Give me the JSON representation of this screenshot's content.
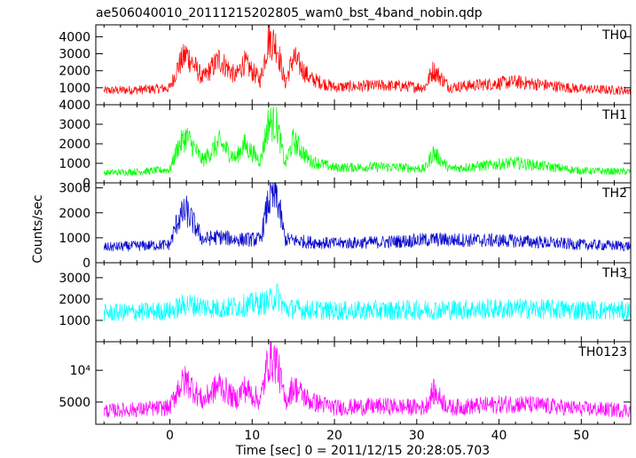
{
  "chart_data": {
    "type": "line",
    "title": "ae506040010_20111215202805_wam0_bst_4band_nobin.qdp",
    "xlabel": "Time [sec] 0 = 2011/12/15 20:28:05.703",
    "ylabel": "Counts/sec",
    "xlim": [
      -9,
      56
    ],
    "x_ticks": [
      "0",
      "10",
      "20",
      "30",
      "40",
      "50"
    ],
    "x_tick_values": [
      0,
      10,
      20,
      30,
      40,
      50
    ],
    "panels": [
      {
        "name": "TH0",
        "color": "#ff0000",
        "ylim": [
          0,
          4700
        ],
        "y_ticks": [
          "1000",
          "2000",
          "3000",
          "4000"
        ],
        "y_tick_values": [
          1000,
          2000,
          3000,
          4000
        ],
        "envelope": [
          {
            "x": -8,
            "y": 800
          },
          {
            "x": -4,
            "y": 850
          },
          {
            "x": 0,
            "y": 950
          },
          {
            "x": 1,
            "y": 2200
          },
          {
            "x": 2,
            "y": 2900
          },
          {
            "x": 4,
            "y": 1500
          },
          {
            "x": 6,
            "y": 2600
          },
          {
            "x": 8,
            "y": 1600
          },
          {
            "x": 9,
            "y": 2400
          },
          {
            "x": 11,
            "y": 1400
          },
          {
            "x": 12,
            "y": 3800
          },
          {
            "x": 13,
            "y": 3400
          },
          {
            "x": 14,
            "y": 1200
          },
          {
            "x": 15,
            "y": 2700
          },
          {
            "x": 17,
            "y": 1500
          },
          {
            "x": 20,
            "y": 1000
          },
          {
            "x": 26,
            "y": 1100
          },
          {
            "x": 31,
            "y": 1000
          },
          {
            "x": 32,
            "y": 2000
          },
          {
            "x": 34,
            "y": 1000
          },
          {
            "x": 42,
            "y": 1300
          },
          {
            "x": 50,
            "y": 900
          },
          {
            "x": 56,
            "y": 800
          }
        ]
      },
      {
        "name": "TH1",
        "color": "#00ff00",
        "ylim": [
          0,
          4000
        ],
        "y_ticks": [
          "0",
          "1000",
          "2000",
          "3000",
          "4000"
        ],
        "y_tick_values": [
          0,
          1000,
          2000,
          3000,
          4000
        ],
        "envelope": [
          {
            "x": -8,
            "y": 500
          },
          {
            "x": -4,
            "y": 550
          },
          {
            "x": 0,
            "y": 650
          },
          {
            "x": 1,
            "y": 1800
          },
          {
            "x": 2,
            "y": 2300
          },
          {
            "x": 4,
            "y": 1100
          },
          {
            "x": 6,
            "y": 2000
          },
          {
            "x": 8,
            "y": 1200
          },
          {
            "x": 9,
            "y": 1900
          },
          {
            "x": 11,
            "y": 1100
          },
          {
            "x": 12,
            "y": 3000
          },
          {
            "x": 13,
            "y": 2900
          },
          {
            "x": 14,
            "y": 900
          },
          {
            "x": 15,
            "y": 2100
          },
          {
            "x": 17,
            "y": 1100
          },
          {
            "x": 20,
            "y": 750
          },
          {
            "x": 26,
            "y": 800
          },
          {
            "x": 31,
            "y": 700
          },
          {
            "x": 32,
            "y": 1500
          },
          {
            "x": 34,
            "y": 700
          },
          {
            "x": 42,
            "y": 1000
          },
          {
            "x": 50,
            "y": 600
          },
          {
            "x": 56,
            "y": 550
          }
        ]
      },
      {
        "name": "TH2",
        "color": "#0000cc",
        "ylim": [
          0,
          3200
        ],
        "y_ticks": [
          "0",
          "1000",
          "2000",
          "3000"
        ],
        "y_tick_values": [
          0,
          1000,
          2000,
          3000
        ],
        "envelope": [
          {
            "x": -8,
            "y": 600
          },
          {
            "x": -4,
            "y": 650
          },
          {
            "x": 0,
            "y": 700
          },
          {
            "x": 1,
            "y": 1700
          },
          {
            "x": 2,
            "y": 2000
          },
          {
            "x": 4,
            "y": 900
          },
          {
            "x": 6,
            "y": 1000
          },
          {
            "x": 8,
            "y": 900
          },
          {
            "x": 11,
            "y": 900
          },
          {
            "x": 12,
            "y": 2400
          },
          {
            "x": 13,
            "y": 2600
          },
          {
            "x": 14,
            "y": 900
          },
          {
            "x": 17,
            "y": 800
          },
          {
            "x": 20,
            "y": 750
          },
          {
            "x": 26,
            "y": 800
          },
          {
            "x": 32,
            "y": 900
          },
          {
            "x": 42,
            "y": 850
          },
          {
            "x": 50,
            "y": 700
          },
          {
            "x": 56,
            "y": 650
          }
        ]
      },
      {
        "name": "TH3",
        "color": "#00ffff",
        "ylim": [
          0,
          3700
        ],
        "y_ticks": [
          "1000",
          "2000",
          "3000"
        ],
        "y_tick_values": [
          1000,
          2000,
          3000
        ],
        "envelope": [
          {
            "x": -8,
            "y": 1300
          },
          {
            "x": 0,
            "y": 1400
          },
          {
            "x": 2,
            "y": 1700
          },
          {
            "x": 6,
            "y": 1500
          },
          {
            "x": 12,
            "y": 1800
          },
          {
            "x": 13,
            "y": 2100
          },
          {
            "x": 14,
            "y": 1500
          },
          {
            "x": 20,
            "y": 1400
          },
          {
            "x": 32,
            "y": 1450
          },
          {
            "x": 42,
            "y": 1500
          },
          {
            "x": 56,
            "y": 1400
          }
        ]
      },
      {
        "name": "TH0123",
        "color": "#ff00ff",
        "ylim": [
          1500,
          14500
        ],
        "y_ticks": [
          "5000",
          "10⁴"
        ],
        "y_tick_values": [
          5000,
          10000
        ],
        "envelope": [
          {
            "x": -8,
            "y": 3500
          },
          {
            "x": -4,
            "y": 3700
          },
          {
            "x": 0,
            "y": 4000
          },
          {
            "x": 1,
            "y": 7000
          },
          {
            "x": 2,
            "y": 8200
          },
          {
            "x": 4,
            "y": 5000
          },
          {
            "x": 6,
            "y": 7500
          },
          {
            "x": 8,
            "y": 5200
          },
          {
            "x": 9,
            "y": 7000
          },
          {
            "x": 11,
            "y": 5000
          },
          {
            "x": 12,
            "y": 11500
          },
          {
            "x": 13,
            "y": 11000
          },
          {
            "x": 14,
            "y": 4800
          },
          {
            "x": 15,
            "y": 7200
          },
          {
            "x": 17,
            "y": 5000
          },
          {
            "x": 20,
            "y": 4000
          },
          {
            "x": 26,
            "y": 4200
          },
          {
            "x": 31,
            "y": 4000
          },
          {
            "x": 32,
            "y": 6400
          },
          {
            "x": 34,
            "y": 4000
          },
          {
            "x": 42,
            "y": 4600
          },
          {
            "x": 50,
            "y": 3800
          },
          {
            "x": 56,
            "y": 3600
          }
        ]
      }
    ]
  }
}
